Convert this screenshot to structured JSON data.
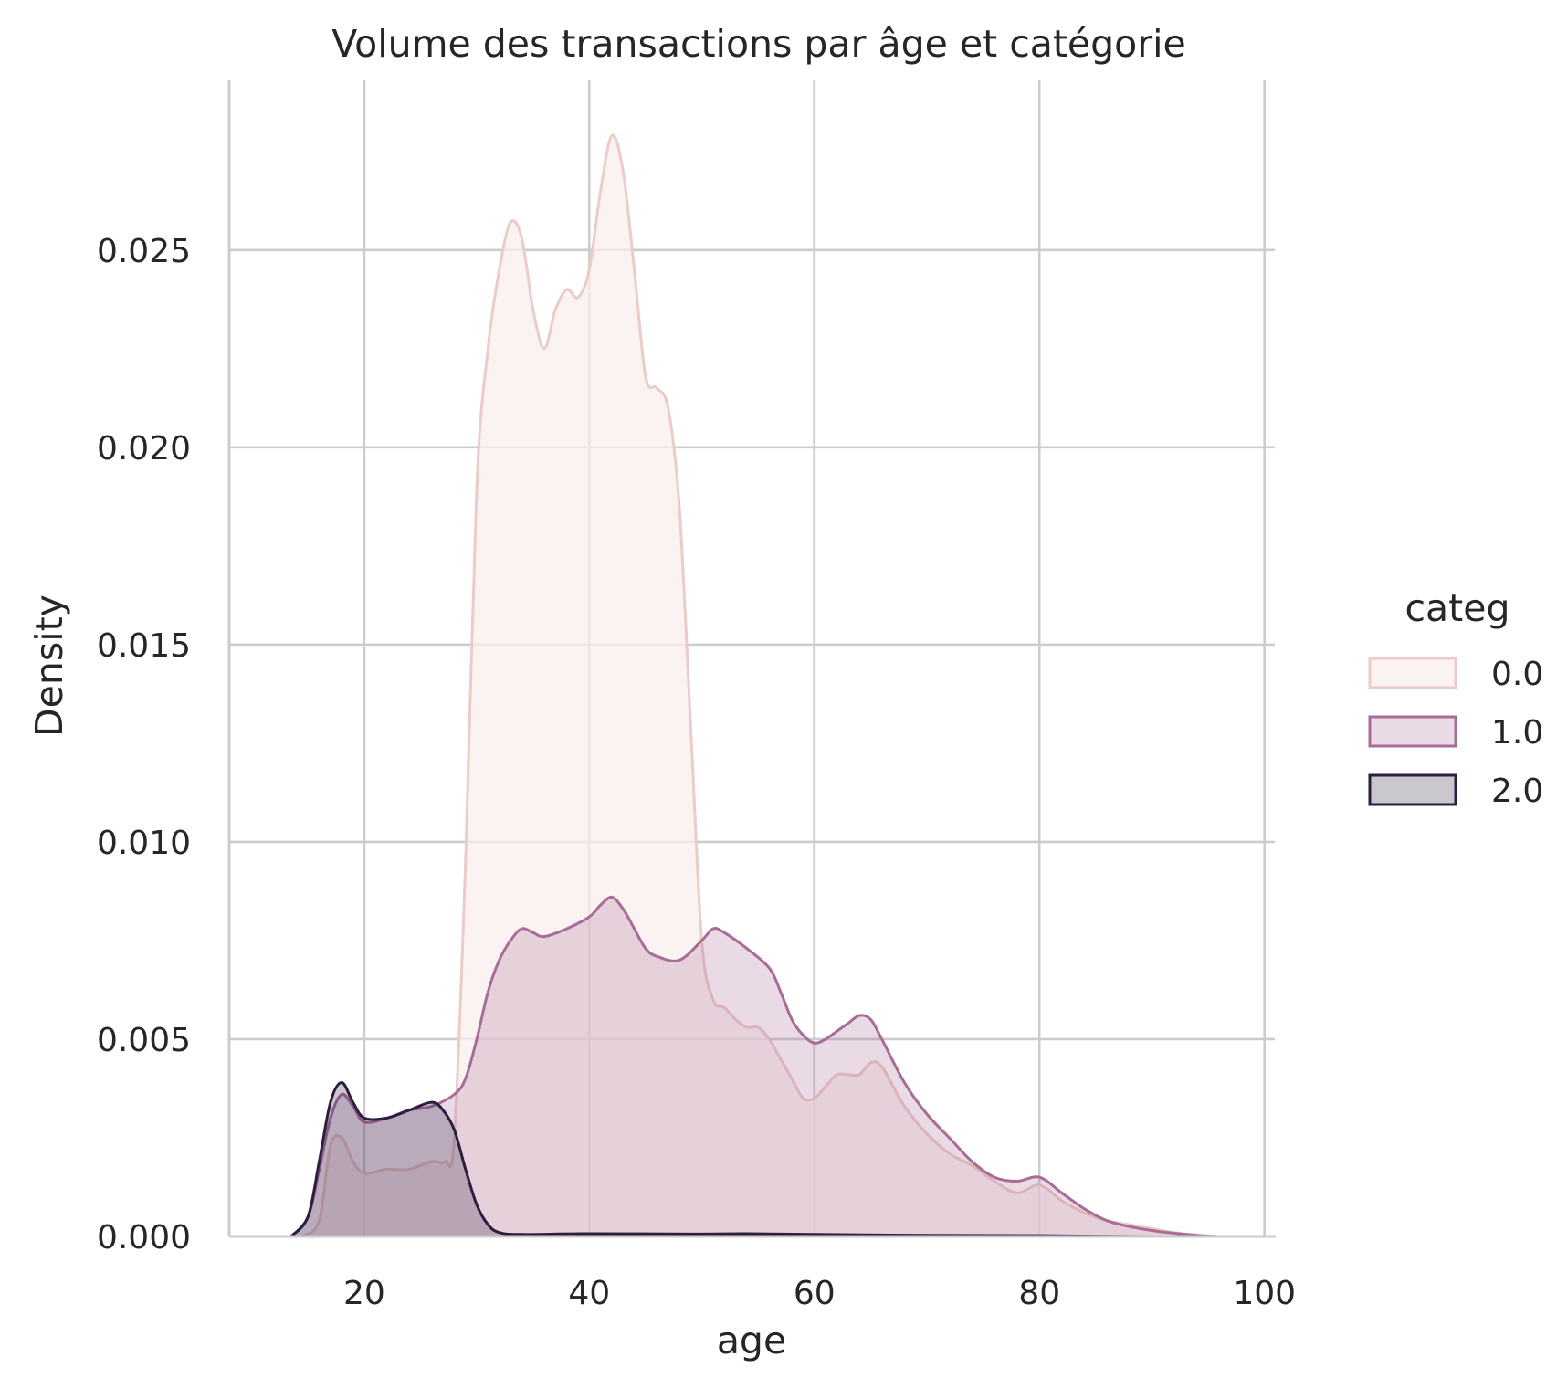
{
  "chart_data": {
    "type": "area",
    "title": "Volume des transactions par âge et catégorie",
    "xlabel": "age",
    "ylabel": "Density",
    "xlim": [
      8,
      101
    ],
    "ylim": [
      0,
      0.0293
    ],
    "x_ticks": [
      20,
      40,
      60,
      80,
      100
    ],
    "x_tick_labels": [
      "20",
      "40",
      "60",
      "80",
      "100"
    ],
    "y_ticks": [
      0,
      0.005,
      0.01,
      0.015,
      0.02,
      0.025
    ],
    "y_tick_labels": [
      "0.000",
      "0.005",
      "0.010",
      "0.015",
      "0.020",
      "0.025"
    ],
    "grid": true,
    "legend": {
      "title": "categ",
      "placement": "outside-right"
    },
    "series": [
      {
        "name": "0.0",
        "color": "#EBCCC6",
        "fill": "#F9EFEE",
        "x": [
          14.5,
          16,
          17,
          18,
          19,
          20,
          22,
          24,
          26,
          27.2,
          28,
          29,
          30,
          31,
          32,
          33,
          34,
          35,
          36,
          37,
          38,
          39,
          40,
          41,
          42,
          43,
          44,
          45,
          46,
          47,
          48,
          49,
          50,
          51,
          52,
          53,
          54,
          55,
          56,
          57,
          58,
          59,
          60,
          61,
          62,
          63,
          64,
          65,
          66,
          68,
          70,
          72,
          74,
          76,
          78,
          80,
          82,
          84,
          86,
          88,
          90,
          92,
          94,
          95
        ],
        "y": [
          0,
          0.0004,
          0.0023,
          0.0025,
          0.0019,
          0.0016,
          0.0017,
          0.0017,
          0.0019,
          0.0019,
          0.0025,
          0.0095,
          0.019,
          0.0225,
          0.0245,
          0.0257,
          0.0253,
          0.0235,
          0.0225,
          0.0235,
          0.024,
          0.0238,
          0.0245,
          0.0265,
          0.0279,
          0.027,
          0.0245,
          0.0218,
          0.0215,
          0.021,
          0.0185,
          0.013,
          0.0075,
          0.006,
          0.0058,
          0.0055,
          0.0053,
          0.0053,
          0.005,
          0.0045,
          0.004,
          0.0035,
          0.0035,
          0.0038,
          0.0041,
          0.0041,
          0.0041,
          0.0044,
          0.0043,
          0.0033,
          0.0026,
          0.0021,
          0.0018,
          0.0014,
          0.0011,
          0.0013,
          0.0009,
          0.0006,
          0.0004,
          0.0003,
          0.0002,
          0.0001,
          3e-05,
          0
        ]
      },
      {
        "name": "1.0",
        "color": "#A76C97",
        "fill": "#A76C97",
        "x": [
          13.5,
          15,
          16,
          17,
          18,
          19,
          20,
          22,
          24,
          26,
          28,
          29,
          30,
          31,
          32,
          33,
          34,
          35,
          36,
          38,
          40,
          41,
          42,
          43,
          44,
          45,
          46,
          48,
          50,
          51,
          52,
          54,
          56,
          57,
          58,
          59,
          60,
          61,
          62,
          63,
          64,
          65,
          66,
          68,
          70,
          72,
          74,
          76,
          78,
          80,
          82,
          84,
          86,
          88,
          90,
          92,
          94,
          96
        ],
        "y": [
          0,
          0.0005,
          0.0017,
          0.003,
          0.0036,
          0.0033,
          0.0029,
          0.003,
          0.0032,
          0.0033,
          0.0036,
          0.004,
          0.005,
          0.0062,
          0.007,
          0.0075,
          0.0078,
          0.0077,
          0.0076,
          0.0078,
          0.0081,
          0.0084,
          0.0086,
          0.0083,
          0.0078,
          0.0073,
          0.0071,
          0.007,
          0.0075,
          0.0078,
          0.0077,
          0.0073,
          0.0068,
          0.0062,
          0.0055,
          0.0051,
          0.0049,
          0.005,
          0.0052,
          0.0054,
          0.0056,
          0.0055,
          0.005,
          0.0039,
          0.0031,
          0.0025,
          0.0019,
          0.0015,
          0.0014,
          0.0015,
          0.0011,
          0.0007,
          0.0004,
          0.00025,
          0.00015,
          8e-05,
          3e-05,
          0
        ]
      },
      {
        "name": "2.0",
        "color": "#2D1E3E",
        "fill": "#2D1E3E",
        "x": [
          13.5,
          15,
          16,
          17,
          18,
          19,
          20,
          22,
          24,
          26,
          27,
          28,
          29,
          30,
          31,
          32,
          34,
          40,
          50,
          54,
          60,
          70,
          80,
          90,
          95
        ],
        "y": [
          0,
          0.0005,
          0.0019,
          0.0034,
          0.0039,
          0.0034,
          0.003,
          0.003,
          0.0032,
          0.0034,
          0.0032,
          0.0027,
          0.0017,
          0.0008,
          0.0003,
          0.0001,
          5e-05,
          7e-05,
          6e-05,
          7e-05,
          5e-05,
          3e-05,
          2e-05,
          0,
          0
        ]
      }
    ]
  }
}
